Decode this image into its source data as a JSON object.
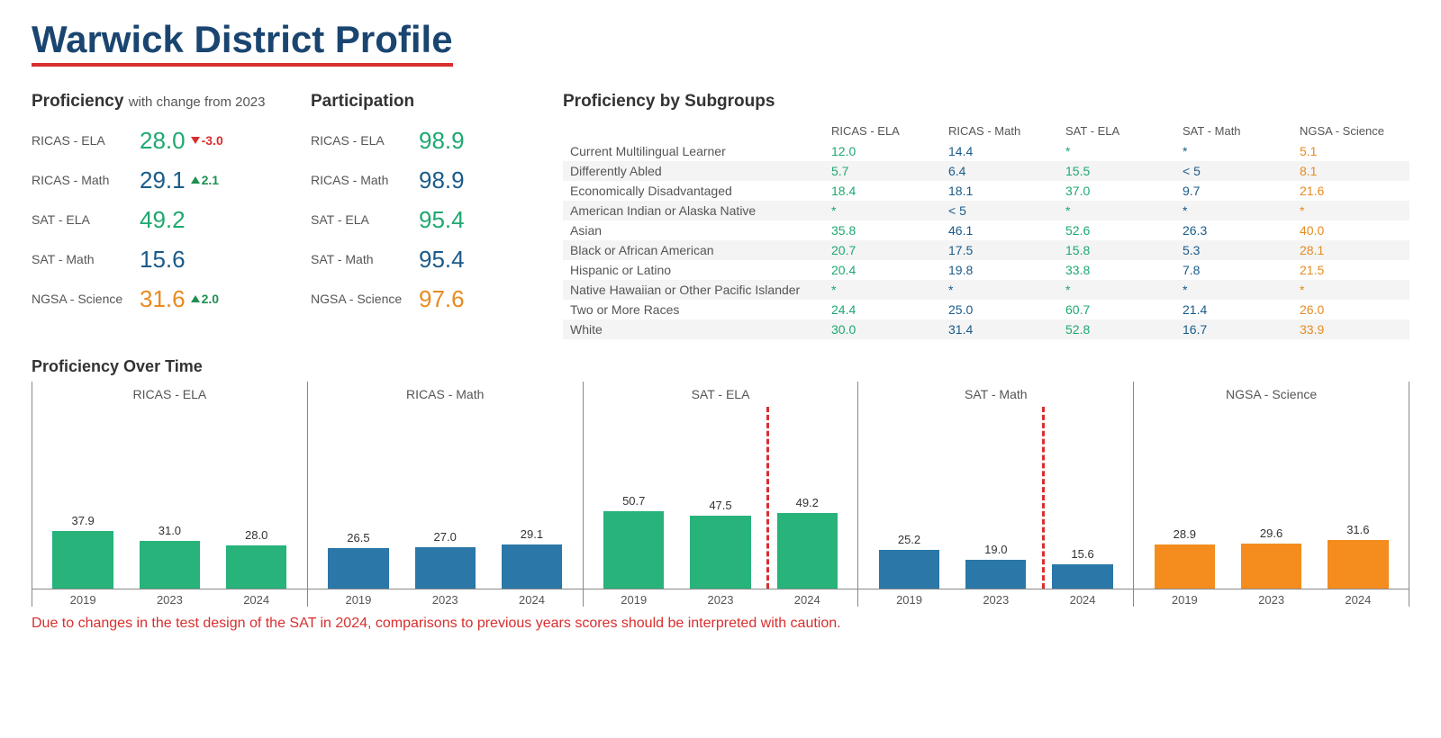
{
  "title": "Warwick District Profile",
  "colors": {
    "title": "#1a4570",
    "accent_red": "#d92e2e",
    "green": "#1ea870",
    "green_bar": "#27b37a",
    "blue": "#1a5b8a",
    "blue_bar": "#2a77a8",
    "orange": "#e78b1f",
    "orange_bar": "#f48c1e",
    "delta_up": "#1e9050",
    "delta_down": "#d92e2e",
    "text_muted": "#555",
    "row_alt": "#f4f4f4"
  },
  "proficiency": {
    "title": "Proficiency",
    "subtitle": "with change from 2023",
    "rows": [
      {
        "label": "RICAS - ELA",
        "value": "28.0",
        "color": "#1ea870",
        "delta": "-3.0",
        "delta_dir": "down",
        "delta_color": "#d92e2e"
      },
      {
        "label": "RICAS - Math",
        "value": "29.1",
        "color": "#1a5b8a",
        "delta": "2.1",
        "delta_dir": "up",
        "delta_color": "#1e9050"
      },
      {
        "label": "SAT - ELA",
        "value": "49.2",
        "color": "#1ea870",
        "delta": null
      },
      {
        "label": "SAT - Math",
        "value": "15.6",
        "color": "#1a5b8a",
        "delta": null
      },
      {
        "label": "NGSA - Science",
        "value": "31.6",
        "color": "#e78b1f",
        "delta": "2.0",
        "delta_dir": "up",
        "delta_color": "#1e9050"
      }
    ]
  },
  "participation": {
    "title": "Participation",
    "rows": [
      {
        "label": "RICAS - ELA",
        "value": "98.9",
        "color": "#1ea870"
      },
      {
        "label": "RICAS - Math",
        "value": "98.9",
        "color": "#1a5b8a"
      },
      {
        "label": "SAT - ELA",
        "value": "95.4",
        "color": "#1ea870"
      },
      {
        "label": "SAT - Math",
        "value": "95.4",
        "color": "#1a5b8a"
      },
      {
        "label": "NGSA - Science",
        "value": "97.6",
        "color": "#e78b1f"
      }
    ]
  },
  "subgroups": {
    "title": "Proficiency by Subgroups",
    "columns": [
      "RICAS - ELA",
      "RICAS - Math",
      "SAT - ELA",
      "SAT - Math",
      "NGSA - Science"
    ],
    "column_colors": [
      "#1ea870",
      "#1a5b8a",
      "#1ea870",
      "#1a5b8a",
      "#e78b1f"
    ],
    "rows": [
      {
        "label": "Current Multilingual Learner",
        "cells": [
          "12.0",
          "14.4",
          "*",
          "*",
          "5.1"
        ]
      },
      {
        "label": "Differently Abled",
        "cells": [
          "5.7",
          "6.4",
          "15.5",
          "< 5",
          "8.1"
        ]
      },
      {
        "label": "Economically Disadvantaged",
        "cells": [
          "18.4",
          "18.1",
          "37.0",
          "9.7",
          "21.6"
        ]
      },
      {
        "label": "American Indian or Alaska Native",
        "cells": [
          "*",
          "< 5",
          "*",
          "*",
          "*"
        ]
      },
      {
        "label": "Asian",
        "cells": [
          "35.8",
          "46.1",
          "52.6",
          "26.3",
          "40.0"
        ]
      },
      {
        "label": "Black or African American",
        "cells": [
          "20.7",
          "17.5",
          "15.8",
          "5.3",
          "28.1"
        ]
      },
      {
        "label": "Hispanic or Latino",
        "cells": [
          "20.4",
          "19.8",
          "33.8",
          "7.8",
          "21.5"
        ]
      },
      {
        "label": "Native Hawaiian or Other Pacific Islander",
        "cells": [
          "*",
          "*",
          "*",
          "*",
          "*"
        ]
      },
      {
        "label": "Two or More Races",
        "cells": [
          "24.4",
          "25.0",
          "60.7",
          "21.4",
          "26.0"
        ]
      },
      {
        "label": "White",
        "cells": [
          "30.0",
          "31.4",
          "52.8",
          "16.7",
          "33.9"
        ]
      }
    ]
  },
  "overtime": {
    "title": "Proficiency Over Time",
    "ymax": 100,
    "years": [
      "2019",
      "2023",
      "2024"
    ],
    "panels": [
      {
        "title": "RICAS - ELA",
        "color": "#27b37a",
        "values": [
          37.9,
          31.0,
          28.0
        ],
        "dashed_before": null
      },
      {
        "title": "RICAS - Math",
        "color": "#2a77a8",
        "values": [
          26.5,
          27.0,
          29.1
        ],
        "dashed_before": null
      },
      {
        "title": "SAT - ELA",
        "color": "#27b37a",
        "values": [
          50.7,
          47.5,
          49.2
        ],
        "dashed_before": 2
      },
      {
        "title": "SAT - Math",
        "color": "#2a77a8",
        "values": [
          25.2,
          19.0,
          15.6
        ],
        "dashed_before": 2
      },
      {
        "title": "NGSA - Science",
        "color": "#f48c1e",
        "values": [
          28.9,
          29.6,
          31.6
        ],
        "dashed_before": null
      }
    ]
  },
  "footnote": "Due to changes in the test design of the SAT in 2024, comparisons to previous years scores should be interpreted with caution."
}
